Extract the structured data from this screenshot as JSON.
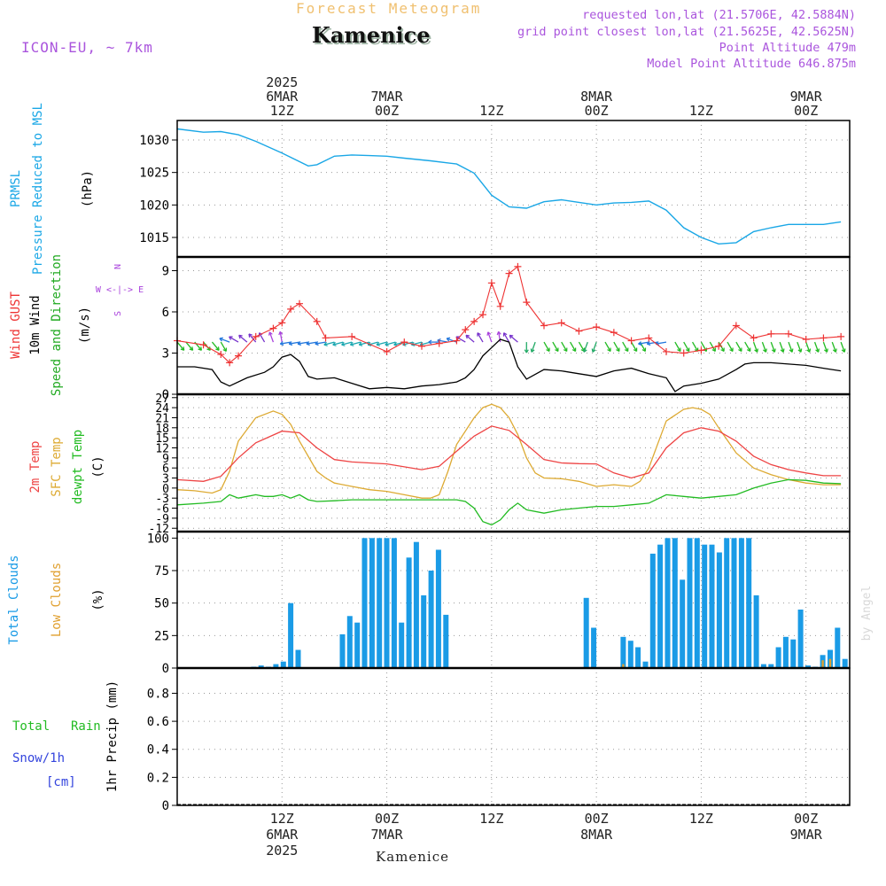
{
  "header": {
    "product": "Forecast Meteogram",
    "location": "Kamenice",
    "model": "ICON-EU, ~ 7km",
    "requested": "requested lon,lat (21.5706E, 42.5884N)",
    "grid_point": "grid point closest lon,lat (21.5625E, 42.5625N)",
    "point_altitude": "Point Altitude 479m",
    "model_altitude": "Model Point Altitude 646.875m",
    "footer_location": "Kamenice",
    "credit": "by Angel"
  },
  "time_axis": {
    "top": [
      {
        "h": 12,
        "lines": [
          "2025",
          "6MAR",
          "12Z"
        ]
      },
      {
        "h": 24,
        "lines": [
          "7MAR",
          "00Z"
        ]
      },
      {
        "h": 36,
        "lines": [
          "12Z"
        ]
      },
      {
        "h": 48,
        "lines": [
          "8MAR",
          "00Z"
        ]
      },
      {
        "h": 60,
        "lines": [
          "12Z"
        ]
      },
      {
        "h": 72,
        "lines": [
          "9MAR",
          "00Z"
        ]
      }
    ],
    "bottom": [
      {
        "h": 12,
        "lines": [
          "12Z",
          "6MAR",
          "2025"
        ]
      },
      {
        "h": 24,
        "lines": [
          "00Z",
          "7MAR"
        ]
      },
      {
        "h": 36,
        "lines": [
          "12Z"
        ]
      },
      {
        "h": 48,
        "lines": [
          "00Z",
          "8MAR"
        ]
      },
      {
        "h": 60,
        "lines": [
          "12Z"
        ]
      },
      {
        "h": 72,
        "lines": [
          "00Z",
          "9MAR"
        ]
      }
    ]
  },
  "colors": {
    "pressure": "#1aa7e6",
    "gust": "#ee3333",
    "wind": "#000000",
    "direction": "#22aa22",
    "t2m": "#ee4444",
    "sfc": "#ddaa33",
    "dewpt": "#22bb22",
    "total_clouds": "#1a9be6",
    "low_clouds": "#e0a030",
    "rain": "#22bb22",
    "snow": "#3344dd",
    "compass": "#aa44dd",
    "header": "#aa55dd",
    "product": "#f0c070",
    "grid": "#999999"
  },
  "panels": {
    "pressure": {
      "labels": [
        "PRMSL",
        "Pressure Reduced to MSL"
      ],
      "unit": "(hPa)",
      "ticks": [
        "1030",
        "1025",
        "1020",
        "1015"
      ]
    },
    "wind": {
      "labels": [
        "Wind GUST",
        "10m Wind",
        "Speed and Direction"
      ],
      "unit": "(m/s)",
      "ticks": [
        "9",
        "6",
        "3",
        "0"
      ],
      "compass": [
        "N",
        "W <-|-> E",
        "S"
      ]
    },
    "temp": {
      "labels": [
        "2m Temp",
        "SFC Temp",
        "dewpt Temp"
      ],
      "unit": "(C)",
      "ticks": [
        "27",
        "24",
        "21",
        "18",
        "15",
        "12",
        "9",
        "6",
        "3",
        "0",
        "-3",
        "-6",
        "-9",
        "-12"
      ]
    },
    "clouds": {
      "labels": [
        "Total Clouds",
        "Low Clouds"
      ],
      "unit": "(%)",
      "ticks": [
        "100",
        "75",
        "50",
        "25",
        "0"
      ]
    },
    "precip": {
      "labels": [
        "Total",
        "Rain",
        "Snow/1h",
        "[cm]"
      ],
      "unit": "1hr Precip (mm)",
      "ticks": [
        "0.8",
        "0.6",
        "0.4",
        "0.2",
        "0"
      ]
    }
  },
  "chart_data": [
    {
      "type": "line",
      "title": "PRMSL Pressure Reduced to MSL",
      "ylabel": "hPa",
      "x_unit": "hours after 2025-03-06 00Z",
      "ylim": [
        1012,
        1033
      ],
      "series": [
        {
          "name": "PRMSL",
          "x": [
            0,
            3,
            5,
            7,
            9,
            12,
            15,
            16,
            18,
            20,
            22,
            24,
            26,
            29,
            32,
            34,
            36,
            38,
            40,
            42,
            44,
            46,
            48,
            50,
            52,
            54,
            56,
            58,
            60,
            62,
            64,
            66,
            68,
            70,
            72,
            74,
            76
          ],
          "values": [
            1031.7,
            1031.2,
            1031.3,
            1030.8,
            1029.8,
            1028,
            1026,
            1026.2,
            1027.5,
            1027.7,
            1027.6,
            1027.5,
            1027.2,
            1026.8,
            1026.3,
            1024.9,
            1021.5,
            1019.7,
            1019.5,
            1020.5,
            1020.8,
            1020.4,
            1020,
            1020.3,
            1020.4,
            1020.6,
            1019.2,
            1016.5,
            1015,
            1014,
            1014.2,
            1015.9,
            1016.5,
            1017,
            1017,
            1017,
            1017.4
          ]
        }
      ]
    },
    {
      "type": "line",
      "title": "Wind GUST / 10m Wind Speed and Direction",
      "ylabel": "m/s",
      "x_unit": "hours after 2025-03-06 00Z",
      "ylim": [
        0,
        10
      ],
      "series": [
        {
          "name": "Wind GUST",
          "x": [
            0,
            3,
            5,
            6,
            7,
            9,
            11,
            12,
            13,
            14,
            16,
            17,
            20,
            24,
            26,
            28,
            30,
            32,
            33,
            34,
            35,
            36,
            37,
            38,
            39,
            40,
            42,
            44,
            46,
            48,
            50,
            52,
            54,
            56,
            58,
            60,
            62,
            64,
            66,
            68,
            70,
            72,
            74,
            76
          ],
          "values": [
            3.9,
            3.6,
            2.9,
            2.3,
            2.8,
            4.2,
            4.8,
            5.2,
            6.2,
            6.6,
            5.3,
            4.1,
            4.2,
            3.1,
            3.8,
            3.5,
            3.7,
            3.9,
            4.7,
            5.3,
            5.8,
            8.1,
            6.4,
            8.8,
            9.3,
            6.7,
            5,
            5.2,
            4.6,
            4.9,
            4.5,
            3.9,
            4.1,
            3.1,
            3,
            3.2,
            3.5,
            5,
            4.1,
            4.4,
            4.4,
            4,
            4.1,
            4.2
          ]
        },
        {
          "name": "10m Wind",
          "x": [
            0,
            2,
            4,
            5,
            6,
            8,
            10,
            11,
            12,
            13,
            14,
            15,
            16,
            18,
            20,
            22,
            24,
            26,
            28,
            30,
            32,
            33,
            34,
            35,
            36,
            37,
            38,
            39,
            40,
            42,
            44,
            46,
            48,
            50,
            52,
            54,
            56,
            57,
            58,
            60,
            62,
            64,
            65,
            66,
            68,
            70,
            72,
            74,
            76
          ],
          "values": [
            2,
            2,
            1.8,
            0.9,
            0.6,
            1.2,
            1.6,
            2,
            2.7,
            2.9,
            2.4,
            1.3,
            1.1,
            1.2,
            0.8,
            0.4,
            0.5,
            0.4,
            0.6,
            0.7,
            0.9,
            1.2,
            1.8,
            2.8,
            3.4,
            4,
            3.8,
            2,
            1.1,
            1.8,
            1.7,
            1.5,
            1.3,
            1.7,
            1.9,
            1.5,
            1.2,
            0.2,
            0.6,
            0.8,
            1.1,
            1.8,
            2.2,
            2.3,
            2.3,
            2.2,
            2.1,
            1.9,
            1.7
          ]
        }
      ],
      "direction": {
        "x": [
          0,
          1,
          2,
          3,
          4,
          5,
          6,
          7,
          8,
          9,
          10,
          11,
          12,
          13,
          14,
          15,
          16,
          17,
          18,
          19,
          20,
          21,
          22,
          23,
          24,
          25,
          26,
          27,
          28,
          29,
          30,
          31,
          32,
          33,
          34,
          35,
          36,
          37,
          38,
          39,
          40,
          41,
          42,
          43,
          44,
          45,
          46,
          47,
          48,
          49,
          50,
          51,
          52,
          53,
          54,
          55,
          56,
          57,
          58,
          59,
          60,
          61,
          62,
          63,
          64,
          65,
          66,
          67,
          68,
          69,
          70,
          71,
          72,
          73,
          74,
          75,
          76
        ],
        "from_deg": [
          320,
          320,
          320,
          320,
          320,
          330,
          110,
          120,
          130,
          140,
          150,
          160,
          170,
          80,
          80,
          80,
          80,
          80,
          75,
          75,
          75,
          75,
          75,
          75,
          75,
          75,
          75,
          75,
          75,
          75,
          90,
          100,
          110,
          120,
          130,
          150,
          160,
          170,
          150,
          130,
          360,
          20,
          330,
          330,
          330,
          330,
          330,
          20,
          20,
          330,
          330,
          330,
          330,
          330,
          80,
          80,
          80,
          330,
          330,
          330,
          330,
          330,
          330,
          330,
          330,
          330,
          340,
          340,
          340,
          340,
          340,
          340,
          340,
          340,
          340,
          340,
          340
        ]
      }
    },
    {
      "type": "line",
      "title": "2m Temp / SFC Temp / dewpt Temp",
      "ylabel": "C",
      "x_unit": "hours after 2025-03-06 00Z",
      "ylim": [
        -13,
        28
      ],
      "series": [
        {
          "name": "2m Temp",
          "x": [
            0,
            3,
            5,
            7,
            9,
            12,
            14,
            16,
            18,
            20,
            24,
            28,
            30,
            32,
            34,
            36,
            38,
            40,
            42,
            44,
            46,
            48,
            50,
            52,
            54,
            56,
            58,
            60,
            62,
            64,
            66,
            68,
            70,
            72,
            74,
            76
          ],
          "values": [
            2.5,
            2,
            3.5,
            9,
            13.5,
            17,
            16.5,
            12,
            8.5,
            7.8,
            7.2,
            5.5,
            6.5,
            11,
            15.5,
            18.5,
            17.2,
            13,
            8.5,
            7.5,
            7.3,
            7.2,
            4.5,
            3,
            4.5,
            12,
            16.5,
            18,
            17,
            14,
            9.5,
            7,
            5.5,
            4.5,
            3.7,
            3.7
          ]
        },
        {
          "name": "SFC Temp",
          "x": [
            0,
            2,
            4,
            5,
            6,
            7,
            9,
            11,
            12,
            13,
            14,
            16,
            17,
            18,
            20,
            22,
            24,
            26,
            28,
            29,
            30,
            31,
            32,
            34,
            35,
            36,
            37,
            38,
            39,
            40,
            41,
            42,
            44,
            46,
            48,
            50,
            52,
            53,
            54,
            55,
            56,
            58,
            59,
            60,
            61,
            62,
            64,
            66,
            68,
            70,
            72,
            74,
            76
          ],
          "values": [
            -0.5,
            -0.8,
            -1.5,
            -0.5,
            5,
            14,
            21,
            23,
            22,
            19,
            14,
            5,
            3,
            1.5,
            0.5,
            -0.5,
            -1,
            -2,
            -3,
            -3,
            -2,
            5,
            13,
            21,
            24,
            25,
            24,
            21,
            16,
            9,
            4.5,
            3,
            2.8,
            2,
            0.5,
            1,
            0.5,
            2,
            6,
            13,
            20,
            23.5,
            24,
            23.5,
            22,
            18,
            10.5,
            6,
            4,
            2.5,
            1.5,
            1,
            1
          ]
        },
        {
          "name": "dewpt Temp",
          "x": [
            0,
            3,
            5,
            6,
            7,
            8,
            9,
            10,
            11,
            12,
            13,
            14,
            15,
            16,
            18,
            20,
            24,
            28,
            30,
            32,
            33,
            34,
            35,
            36,
            37,
            38,
            39,
            40,
            42,
            44,
            46,
            48,
            50,
            52,
            54,
            56,
            58,
            60,
            62,
            64,
            66,
            68,
            70,
            72,
            74,
            76
          ],
          "values": [
            -5,
            -4.5,
            -4,
            -2,
            -3,
            -2.5,
            -2,
            -2.5,
            -2.5,
            -2,
            -3,
            -2,
            -3.5,
            -4,
            -3.8,
            -3.5,
            -3.5,
            -3.5,
            -3.5,
            -3.5,
            -4,
            -6,
            -10,
            -11,
            -9.5,
            -6.5,
            -4.5,
            -6.5,
            -7.5,
            -6.5,
            -6,
            -5.5,
            -5.5,
            -5,
            -4.5,
            -2,
            -2.5,
            -3,
            -2.5,
            -2,
            0,
            1.5,
            2.5,
            2.3,
            1.5,
            1.3
          ]
        }
      ]
    },
    {
      "type": "bar",
      "title": "Total Clouds / Low Clouds",
      "ylabel": "%",
      "x_unit": "hours after 2025-03-06 00Z",
      "ylim": [
        0,
        105
      ],
      "series": [
        {
          "name": "Total Clouds",
          "values": [
            0,
            0,
            0,
            0,
            0,
            0,
            0,
            0,
            0,
            0,
            1,
            2,
            1,
            3,
            5,
            50,
            14,
            0,
            0,
            0,
            0,
            0,
            26,
            40,
            35,
            100,
            100,
            100,
            100,
            100,
            35,
            85,
            97,
            56,
            75,
            91,
            41,
            0,
            0,
            0,
            0,
            0,
            0,
            0,
            0,
            0,
            0,
            0,
            0,
            0,
            0,
            0,
            0,
            0,
            0,
            54,
            31,
            0,
            0,
            0,
            24,
            21,
            16,
            5,
            88,
            95,
            100,
            100,
            68,
            100,
            100,
            95,
            95,
            89,
            100,
            100,
            100,
            100,
            56,
            3,
            3,
            16,
            24,
            22,
            45,
            2,
            1,
            10,
            14,
            31,
            7
          ]
        },
        {
          "name": "Low Clouds",
          "values": [
            0,
            0,
            0,
            0,
            0,
            0,
            0,
            0,
            0,
            0,
            0,
            0,
            0,
            0,
            0,
            0,
            0,
            0,
            0,
            0,
            0,
            0,
            0,
            0,
            0,
            0,
            0,
            0,
            0,
            0,
            0,
            0,
            0,
            0,
            0,
            0,
            0,
            0,
            0,
            0,
            0,
            0,
            0,
            0,
            0,
            0,
            0,
            0,
            0,
            0,
            0,
            0,
            0,
            0,
            0,
            0,
            0,
            0,
            0,
            0,
            3,
            0,
            0,
            0,
            0,
            0,
            0,
            0,
            0,
            0,
            0,
            0,
            0,
            0,
            0,
            0,
            0,
            0,
            0,
            0,
            0,
            0,
            0,
            0,
            0,
            0,
            0,
            6,
            7,
            0,
            0
          ]
        }
      ]
    },
    {
      "type": "bar",
      "title": "1hr Precip",
      "ylabel": "mm",
      "x_unit": "hours after 2025-03-06 00Z",
      "ylim": [
        0,
        0.98
      ],
      "series": [
        {
          "name": "Total Rain",
          "values": []
        },
        {
          "name": "Snow/1h",
          "values": []
        }
      ]
    }
  ]
}
